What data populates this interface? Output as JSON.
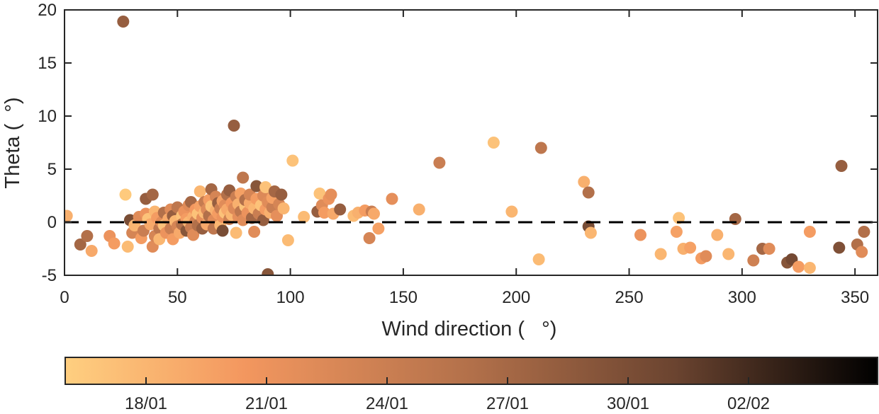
{
  "chart_data": {
    "type": "scatter",
    "title": "",
    "xlabel": "Wind direction (   °)",
    "ylabel": "Theta (  °)",
    "xlim": [
      0,
      360
    ],
    "ylim": [
      -5,
      20
    ],
    "xticks": [
      0,
      50,
      100,
      150,
      200,
      250,
      300,
      350
    ],
    "yticks": [
      -5,
      0,
      5,
      10,
      15,
      20
    ],
    "grid": false,
    "reference_line": {
      "y": 0,
      "style": "dashed"
    },
    "colorbar": {
      "position": "bottom",
      "tick_labels": [
        "18/01",
        "21/01",
        "24/01",
        "27/01",
        "30/01",
        "02/02"
      ],
      "colors": [
        "#ffcf80",
        "#f3975f",
        "#b2704a",
        "#6b4430",
        "#000000"
      ]
    },
    "points": [
      [
        1,
        0.6,
        0.12
      ],
      [
        7,
        -2.1,
        0.55
      ],
      [
        10,
        -1.3,
        0.5
      ],
      [
        12,
        -2.7,
        0.15
      ],
      [
        20,
        -1.3,
        0.25
      ],
      [
        22,
        -2.0,
        0.2
      ],
      [
        26,
        18.9,
        0.6
      ],
      [
        27,
        2.6,
        0.02
      ],
      [
        28,
        -2.3,
        0.08
      ],
      [
        29,
        0.2,
        0.7
      ],
      [
        30,
        -1.0,
        0.35
      ],
      [
        31,
        -0.3,
        0.1
      ],
      [
        33,
        0.5,
        0.3
      ],
      [
        34,
        -1.5,
        0.2
      ],
      [
        35,
        -0.8,
        0.4
      ],
      [
        36,
        2.2,
        0.6
      ],
      [
        36,
        0.8,
        0.25
      ],
      [
        37,
        0.3,
        0.05
      ],
      [
        38,
        -0.2,
        0.15
      ],
      [
        39,
        -2.3,
        0.3
      ],
      [
        39,
        2.6,
        0.55
      ],
      [
        40,
        1.0,
        0.1
      ],
      [
        40,
        -1.3,
        0.35
      ],
      [
        41,
        0.4,
        0.2
      ],
      [
        42,
        -0.6,
        0.45
      ],
      [
        42,
        -1.6,
        0.1
      ],
      [
        43,
        0.0,
        0.3
      ],
      [
        44,
        0.9,
        0.5
      ],
      [
        44,
        -0.3,
        0.05
      ],
      [
        45,
        -1.0,
        0.25
      ],
      [
        46,
        0.3,
        0.15
      ],
      [
        47,
        -0.6,
        0.4
      ],
      [
        47,
        1.2,
        0.3
      ],
      [
        48,
        -1.6,
        0.2
      ],
      [
        48,
        0.6,
        0.6
      ],
      [
        49,
        0.1,
        0.1
      ],
      [
        50,
        -0.4,
        0.35
      ],
      [
        50,
        1.4,
        0.45
      ],
      [
        51,
        -1.0,
        0.15
      ],
      [
        52,
        0.6,
        0.05
      ],
      [
        52,
        -0.2,
        0.5
      ],
      [
        53,
        1.0,
        0.25
      ],
      [
        54,
        -0.8,
        0.65
      ],
      [
        54,
        0.3,
        0.2
      ],
      [
        55,
        1.6,
        0.3
      ],
      [
        55,
        0.0,
        0.1
      ],
      [
        56,
        -0.5,
        0.4
      ],
      [
        56,
        1.9,
        0.55
      ],
      [
        57,
        0.5,
        0.12
      ],
      [
        57,
        -1.2,
        0.3
      ],
      [
        58,
        1.2,
        0.22
      ],
      [
        58,
        0.1,
        0.35
      ],
      [
        59,
        0.8,
        0.05
      ],
      [
        59,
        -0.3,
        0.5
      ],
      [
        60,
        1.5,
        0.18
      ],
      [
        60,
        2.9,
        0.1
      ],
      [
        61,
        0.4,
        0.28
      ],
      [
        61,
        -0.6,
        0.6
      ],
      [
        62,
        1.9,
        0.42
      ],
      [
        62,
        0.9,
        0.08
      ],
      [
        63,
        1.2,
        0.32
      ],
      [
        63,
        -0.2,
        0.15
      ],
      [
        64,
        0.6,
        0.5
      ],
      [
        64,
        2.1,
        0.2
      ],
      [
        65,
        1.5,
        0.05
      ],
      [
        65,
        3.1,
        0.55
      ],
      [
        66,
        0.2,
        0.3
      ],
      [
        66,
        -0.6,
        0.45
      ],
      [
        67,
        1.1,
        0.12
      ],
      [
        67,
        2.4,
        0.35
      ],
      [
        68,
        0.8,
        0.2
      ],
      [
        68,
        1.8,
        0.6
      ],
      [
        69,
        -0.3,
        0.1
      ],
      [
        69,
        1.3,
        0.4
      ],
      [
        70,
        0.5,
        0.25
      ],
      [
        70,
        2.0,
        0.18
      ],
      [
        70,
        -0.8,
        0.7
      ],
      [
        71,
        1.6,
        0.3
      ],
      [
        71,
        0.9,
        0.05
      ],
      [
        72,
        2.6,
        0.5
      ],
      [
        72,
        1.2,
        0.15
      ],
      [
        73,
        0.3,
        0.38
      ],
      [
        73,
        3.0,
        0.6
      ],
      [
        74,
        1.8,
        0.22
      ],
      [
        74,
        0.7,
        0.1
      ],
      [
        75,
        9.1,
        0.6
      ],
      [
        75,
        1.3,
        0.32
      ],
      [
        76,
        2.4,
        0.4
      ],
      [
        76,
        -1.0,
        0.08
      ],
      [
        77,
        0.5,
        0.28
      ],
      [
        77,
        1.7,
        0.12
      ],
      [
        78,
        1.0,
        0.45
      ],
      [
        78,
        2.7,
        0.18
      ],
      [
        79,
        4.2,
        0.45
      ],
      [
        79,
        0.2,
        0.3
      ],
      [
        80,
        1.5,
        0.05
      ],
      [
        80,
        2.1,
        0.5
      ],
      [
        81,
        0.9,
        0.25
      ],
      [
        82,
        1.8,
        0.15
      ],
      [
        82,
        2.6,
        0.35
      ],
      [
        83,
        0.4,
        0.55
      ],
      [
        84,
        1.3,
        0.1
      ],
      [
        84,
        -0.9,
        0.3
      ],
      [
        85,
        2.2,
        0.2
      ],
      [
        85,
        3.4,
        0.65
      ],
      [
        86,
        0.8,
        0.4
      ],
      [
        87,
        1.6,
        0.05
      ],
      [
        88,
        2.5,
        0.32
      ],
      [
        88,
        0.2,
        0.6
      ],
      [
        89,
        3.3,
        0.05
      ],
      [
        89,
        1.2,
        0.2
      ],
      [
        90,
        -4.9,
        0.65
      ],
      [
        90,
        1.9,
        0.3
      ],
      [
        91,
        0.9,
        0.12
      ],
      [
        92,
        1.4,
        0.4
      ],
      [
        92,
        2.3,
        0.18
      ],
      [
        93,
        2.9,
        0.55
      ],
      [
        94,
        0.6,
        0.28
      ],
      [
        95,
        1.7,
        0.35
      ],
      [
        96,
        2.6,
        0.6
      ],
      [
        97,
        1.3,
        0.1
      ],
      [
        99,
        -1.7,
        0.08
      ],
      [
        101,
        5.8,
        0.05
      ],
      [
        106,
        0.5,
        0.08
      ],
      [
        112,
        1.0,
        0.6
      ],
      [
        113,
        2.7,
        0.05
      ],
      [
        114,
        1.6,
        0.3
      ],
      [
        115,
        0.9,
        0.2
      ],
      [
        117,
        2.2,
        0.25
      ],
      [
        118,
        2.6,
        0.28
      ],
      [
        119,
        0.8,
        0.15
      ],
      [
        122,
        1.2,
        0.6
      ],
      [
        128,
        0.6,
        0.08
      ],
      [
        130,
        0.9,
        0.12
      ],
      [
        133,
        1.1,
        0.2
      ],
      [
        135,
        -1.5,
        0.35
      ],
      [
        136,
        1.0,
        0.4
      ],
      [
        137,
        0.8,
        0.15
      ],
      [
        139,
        -0.6,
        0.18
      ],
      [
        145,
        2.2,
        0.28
      ],
      [
        157,
        1.2,
        0.12
      ],
      [
        166,
        5.6,
        0.4
      ],
      [
        190,
        7.5,
        0.05
      ],
      [
        198,
        1.0,
        0.1
      ],
      [
        210,
        -3.5,
        0.08
      ],
      [
        211,
        7.0,
        0.45
      ],
      [
        230,
        3.8,
        0.12
      ],
      [
        232,
        2.8,
        0.5
      ],
      [
        232,
        -0.4,
        0.7
      ],
      [
        233,
        -1.0,
        0.1
      ],
      [
        255,
        -1.2,
        0.25
      ],
      [
        264,
        -3.0,
        0.1
      ],
      [
        271,
        -0.9,
        0.18
      ],
      [
        272,
        0.4,
        0.05
      ],
      [
        274,
        -2.5,
        0.12
      ],
      [
        277,
        -2.4,
        0.18
      ],
      [
        282,
        -3.4,
        0.2
      ],
      [
        284,
        -3.2,
        0.3
      ],
      [
        289,
        -1.2,
        0.12
      ],
      [
        294,
        -3.0,
        0.1
      ],
      [
        297,
        0.3,
        0.55
      ],
      [
        305,
        -3.6,
        0.38
      ],
      [
        309,
        -2.5,
        0.55
      ],
      [
        312,
        -2.5,
        0.3
      ],
      [
        320,
        -3.8,
        0.65
      ],
      [
        322,
        -3.5,
        0.72
      ],
      [
        325,
        -4.2,
        0.2
      ],
      [
        330,
        -4.3,
        0.1
      ],
      [
        330,
        -0.9,
        0.2
      ],
      [
        343,
        -2.4,
        0.68
      ],
      [
        344,
        5.3,
        0.6
      ],
      [
        351,
        -2.1,
        0.5
      ],
      [
        353,
        -2.8,
        0.3
      ],
      [
        354,
        -0.9,
        0.5
      ]
    ]
  }
}
